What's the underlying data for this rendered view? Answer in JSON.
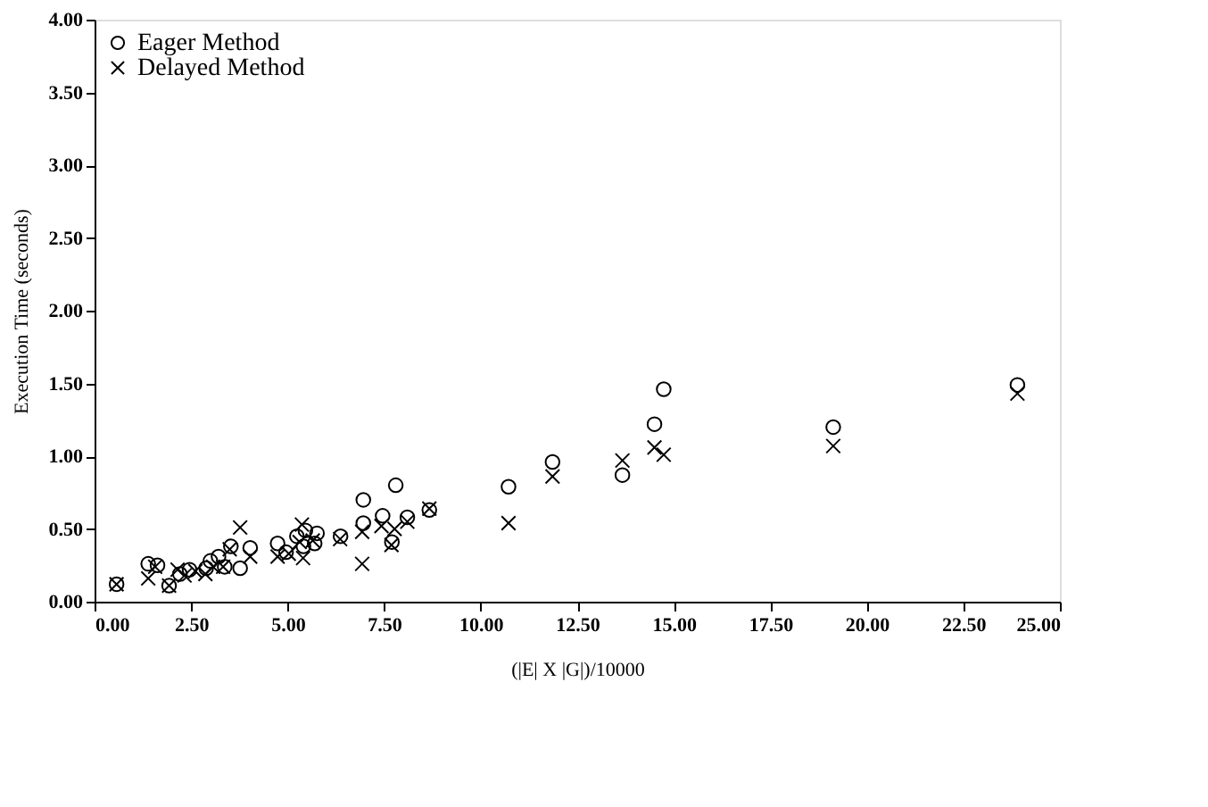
{
  "chart_data": {
    "type": "scatter",
    "xlabel": "(|E| X |G|)/10000",
    "ylabel": "Execution Time (seconds)",
    "xlim": [
      0,
      25
    ],
    "ylim": [
      0,
      4
    ],
    "xticks": [
      {
        "value": 0,
        "label": "0.00"
      },
      {
        "value": 2.5,
        "label": "2.50"
      },
      {
        "value": 5,
        "label": "5.00"
      },
      {
        "value": 7.5,
        "label": "7.50"
      },
      {
        "value": 10,
        "label": "10.00"
      },
      {
        "value": 12.5,
        "label": "12.50"
      },
      {
        "value": 15,
        "label": "15.00"
      },
      {
        "value": 17.5,
        "label": "17.50"
      },
      {
        "value": 20,
        "label": "20.00"
      },
      {
        "value": 22.5,
        "label": "22.50"
      },
      {
        "value": 25,
        "label": "25.00"
      }
    ],
    "yticks": [
      {
        "value": 0,
        "label": "0.00"
      },
      {
        "value": 0.5,
        "label": "0.50"
      },
      {
        "value": 1,
        "label": "1.00"
      },
      {
        "value": 1.5,
        "label": "1.50"
      },
      {
        "value": 2,
        "label": "2.00"
      },
      {
        "value": 2.5,
        "label": "2.50"
      },
      {
        "value": 3,
        "label": "3.00"
      },
      {
        "value": 3.5,
        "label": "3.50"
      },
      {
        "value": 4,
        "label": "4.00"
      }
    ],
    "grid": false,
    "legend": "top left",
    "series": [
      {
        "name": "Eager Method",
        "color": "#000000",
        "marker": "circle",
        "x": [
          0.57,
          1.39,
          1.63,
          1.93,
          2.21,
          2.46,
          2.89,
          3.0,
          3.21,
          3.37,
          3.53,
          3.77,
          4.03,
          4.74,
          4.96,
          5.24,
          5.46,
          5.41,
          5.76,
          5.7,
          6.37,
          6.96,
          6.96,
          7.46,
          7.7,
          7.8,
          8.1,
          8.67,
          10.72,
          11.86,
          13.67,
          14.5,
          14.74,
          19.13,
          23.9
        ],
        "values": [
          0.12,
          0.26,
          0.25,
          0.11,
          0.19,
          0.22,
          0.23,
          0.28,
          0.31,
          0.24,
          0.38,
          0.23,
          0.37,
          0.4,
          0.34,
          0.45,
          0.49,
          0.38,
          0.47,
          0.4,
          0.45,
          0.7,
          0.54,
          0.59,
          0.41,
          0.8,
          0.58,
          0.63,
          0.79,
          0.96,
          0.87,
          1.22,
          1.46,
          1.2,
          1.49
        ]
      },
      {
        "name": "Delayed Method",
        "color": "#000000",
        "marker": "cross",
        "x": [
          0.57,
          1.39,
          1.57,
          1.93,
          2.15,
          2.33,
          2.61,
          2.87,
          3.07,
          3.33,
          3.5,
          3.77,
          4.03,
          4.74,
          5.03,
          5.31,
          5.37,
          5.4,
          5.65,
          6.36,
          6.93,
          6.93,
          7.43,
          7.69,
          7.77,
          8.1,
          8.67,
          10.72,
          11.86,
          13.67,
          14.5,
          14.74,
          19.13,
          23.9
        ],
        "values": [
          0.12,
          0.16,
          0.24,
          0.11,
          0.22,
          0.18,
          0.21,
          0.19,
          0.24,
          0.24,
          0.36,
          0.51,
          0.31,
          0.31,
          0.33,
          0.41,
          0.53,
          0.3,
          0.42,
          0.43,
          0.48,
          0.26,
          0.52,
          0.39,
          0.5,
          0.55,
          0.64,
          0.54,
          0.86,
          0.97,
          1.06,
          1.01,
          1.07,
          1.43
        ]
      }
    ]
  }
}
